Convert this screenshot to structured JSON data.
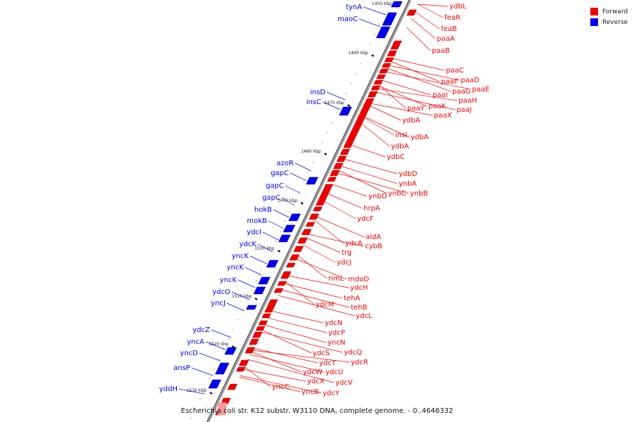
{
  "caption": "Escherichia coli str. K12 substr. W3110 DNA, complete genome. - 0..4646332",
  "legend": [
    {
      "label": "Forward",
      "color": "#ee0000"
    },
    {
      "label": "Reverse",
      "color": "#0000ee"
    }
  ],
  "colors": {
    "forward": "#ee0000",
    "reverse": "#0000ee",
    "axis": "#888888"
  },
  "ticks": [
    "1450 kbp",
    "1460 kbp",
    "1470 kbp",
    "1480 kbp",
    "1490 kbp",
    "1500 kbp",
    "1510 kbp",
    "1520 kbp",
    "1530 kbp"
  ],
  "forward_genes": [
    "ydbL",
    "feaR",
    "feaB",
    "paaA",
    "paaB",
    "paaC",
    "paaD",
    "paaE",
    "paaF",
    "paaG",
    "paaH",
    "paaI",
    "paaJ",
    "paaK",
    "paaY",
    "paaX",
    "ydbA",
    "insI",
    "ydbA",
    "ydbA",
    "ydbC",
    "ydbD",
    "ynbA",
    "ynbB",
    "ynbC",
    "ynbD",
    "hrpA",
    "ydcF",
    "aldA",
    "ydcA",
    "cybB",
    "trg",
    "ydcJ",
    "mdoD",
    "rimL",
    "ydcH",
    "tehA",
    "tehB",
    "ydcL",
    "ydcM",
    "ydcN",
    "ydcP",
    "yncN",
    "ydcQ",
    "ydcS",
    "ydcR",
    "ydcT",
    "ydcU",
    "ydcW",
    "ydcV",
    "ydcX",
    "yncB",
    "ydcY",
    "yncC"
  ],
  "reverse_genes": [
    "tynA",
    "maoC",
    "insD",
    "insC",
    "azoR",
    "gapC",
    "gapC",
    "gapC",
    "hokB",
    "mokB",
    "ydcI",
    "ydcK",
    "yncK",
    "yncK",
    "yncK",
    "ydcO",
    "yncJ",
    "ydcZ",
    "yncA",
    "yncD",
    "ansP",
    "yddH"
  ]
}
